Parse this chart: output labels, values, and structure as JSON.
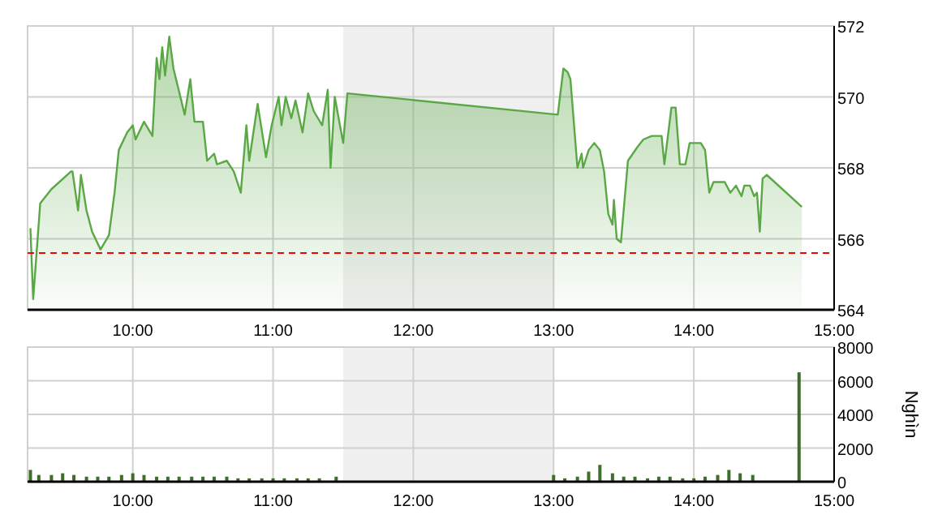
{
  "chart_data": [
    {
      "type": "area",
      "xlim": [
        9.25,
        15
      ],
      "xticks": [
        {
          "value": 10,
          "label": "10:00"
        },
        {
          "value": 11,
          "label": "11:00"
        },
        {
          "value": 12,
          "label": "12:00"
        },
        {
          "value": 13,
          "label": "13:00"
        },
        {
          "value": 14,
          "label": "14:00"
        },
        {
          "value": 15,
          "label": "15:00"
        }
      ],
      "ylim": [
        564,
        572
      ],
      "yticks": [
        564,
        566,
        568,
        570,
        572
      ],
      "grid": true,
      "bands": [
        {
          "axis": "x",
          "from": 11.5,
          "to": 13,
          "color": "#f0f0f0"
        }
      ],
      "ref_lines": [
        {
          "axis": "y",
          "value": 565.6,
          "color": "#ff0000",
          "line_style": "dashed"
        }
      ],
      "series": [
        {
          "color": "#5aa845",
          "x": [
            9.27,
            9.29,
            9.34,
            9.42,
            9.56,
            9.57,
            9.61,
            9.63,
            9.67,
            9.71,
            9.77,
            9.83,
            9.87,
            9.9,
            9.96,
            10.0,
            10.02,
            10.08,
            10.14,
            10.17,
            10.19,
            10.21,
            10.23,
            10.26,
            10.29,
            10.37,
            10.41,
            10.44,
            10.5,
            10.53,
            10.58,
            10.6,
            10.67,
            10.72,
            10.77,
            10.81,
            10.83,
            10.89,
            10.95,
            10.99,
            11.04,
            11.06,
            11.09,
            11.13,
            11.16,
            11.21,
            11.25,
            11.29,
            11.35,
            11.39,
            11.41,
            11.44,
            11.5,
            11.53,
            13.03,
            13.07,
            13.1,
            13.12,
            13.17,
            13.2,
            13.21,
            13.25,
            13.29,
            13.33,
            13.36,
            13.39,
            13.42,
            13.43,
            13.45,
            13.48,
            13.53,
            13.6,
            13.64,
            13.7,
            13.77,
            13.79,
            13.84,
            13.87,
            13.9,
            13.94,
            13.97,
            14.05,
            14.08,
            14.11,
            14.14,
            14.22,
            14.26,
            14.3,
            14.34,
            14.36,
            14.4,
            14.43,
            14.45,
            14.47,
            14.49,
            14.52,
            14.77
          ],
          "values": [
            566.3,
            564.3,
            567.0,
            567.4,
            567.9,
            567.9,
            566.8,
            567.8,
            566.8,
            566.2,
            565.7,
            566.1,
            567.3,
            568.5,
            569.0,
            569.2,
            568.8,
            569.3,
            568.9,
            571.1,
            570.5,
            571.4,
            570.6,
            571.7,
            570.8,
            569.5,
            570.5,
            569.3,
            569.3,
            568.2,
            568.4,
            568.1,
            568.2,
            567.9,
            567.3,
            569.2,
            568.2,
            569.8,
            568.3,
            569.2,
            570.0,
            569.2,
            570.0,
            569.4,
            569.9,
            569.0,
            570.1,
            569.6,
            569.2,
            570.2,
            568.0,
            570.0,
            568.7,
            570.1,
            569.5,
            570.8,
            570.7,
            570.5,
            568.0,
            568.4,
            568.0,
            568.5,
            568.7,
            568.5,
            567.9,
            566.7,
            566.4,
            567.1,
            566.0,
            565.9,
            568.2,
            568.6,
            568.8,
            568.9,
            568.9,
            568.1,
            569.7,
            569.7,
            568.1,
            568.1,
            568.7,
            568.7,
            568.5,
            567.3,
            567.6,
            567.6,
            567.3,
            567.5,
            567.2,
            567.5,
            567.5,
            567.2,
            567.3,
            566.2,
            567.7,
            567.8,
            566.9
          ]
        }
      ]
    },
    {
      "type": "bar",
      "xlim": [
        9.25,
        15
      ],
      "xticks": [
        {
          "value": 10,
          "label": "10:00"
        },
        {
          "value": 11,
          "label": "11:00"
        },
        {
          "value": 12,
          "label": "12:00"
        },
        {
          "value": 13,
          "label": "13:00"
        },
        {
          "value": 14,
          "label": "14:00"
        },
        {
          "value": 15,
          "label": "15:00"
        }
      ],
      "ylim": [
        0,
        8000
      ],
      "yticks": [
        0,
        2000,
        4000,
        6000,
        8000
      ],
      "grid": true,
      "ylabel": "Nghìn",
      "bands": [
        {
          "axis": "x",
          "from": 11.5,
          "to": 13,
          "color": "#f0f0f0"
        }
      ],
      "series": [
        {
          "color": "#3d6e2c",
          "x": [
            9.27,
            9.33,
            9.42,
            9.5,
            9.58,
            9.67,
            9.75,
            9.83,
            9.92,
            10.0,
            10.08,
            10.17,
            10.25,
            10.33,
            10.42,
            10.5,
            10.58,
            10.67,
            10.75,
            10.83,
            10.92,
            11.0,
            11.08,
            11.17,
            11.25,
            11.33,
            11.45,
            13.0,
            13.08,
            13.17,
            13.25,
            13.33,
            13.42,
            13.5,
            13.58,
            13.67,
            13.75,
            13.83,
            13.92,
            14.0,
            14.08,
            14.17,
            14.25,
            14.33,
            14.42,
            14.75
          ],
          "values": [
            700,
            400,
            400,
            500,
            400,
            300,
            300,
            300,
            400,
            500,
            400,
            300,
            300,
            300,
            300,
            300,
            300,
            300,
            200,
            200,
            200,
            200,
            200,
            200,
            200,
            200,
            300,
            400,
            200,
            300,
            600,
            1000,
            500,
            300,
            300,
            200,
            300,
            300,
            200,
            200,
            300,
            400,
            700,
            500,
            400,
            6500
          ]
        }
      ]
    }
  ]
}
